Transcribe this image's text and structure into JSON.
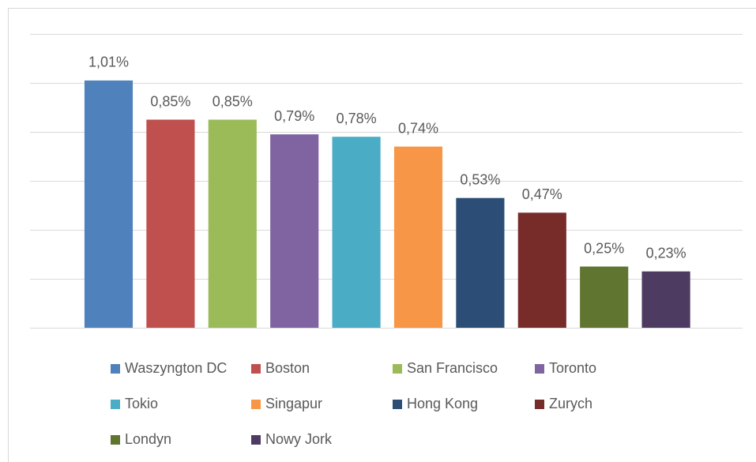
{
  "chart_data": {
    "type": "bar",
    "categories": [
      "Waszyngton DC",
      "Boston",
      "San Francisco",
      "Toronto",
      "Tokio",
      "Singapur",
      "Hong Kong",
      "Zurych",
      "Londyn",
      "Nowy Jork"
    ],
    "values": [
      1.01,
      0.85,
      0.85,
      0.79,
      0.78,
      0.74,
      0.53,
      0.47,
      0.25,
      0.23
    ],
    "value_labels": [
      "1,01%",
      "0,85%",
      "0,85%",
      "0,79%",
      "0,78%",
      "0,74%",
      "0,53%",
      "0,47%",
      "0,25%",
      "0,23%"
    ],
    "colors": [
      "#4f81bd",
      "#c0504d",
      "#9bbb59",
      "#8064a2",
      "#4bacc6",
      "#f79646",
      "#2c4d75",
      "#772c2a",
      "#5f7530",
      "#4d3b62"
    ],
    "ylim": [
      0,
      1.2
    ],
    "yticks": [
      0,
      0.2,
      0.4,
      0.6,
      0.8,
      1,
      1.2
    ],
    "grid": true,
    "legend": "bottom"
  }
}
